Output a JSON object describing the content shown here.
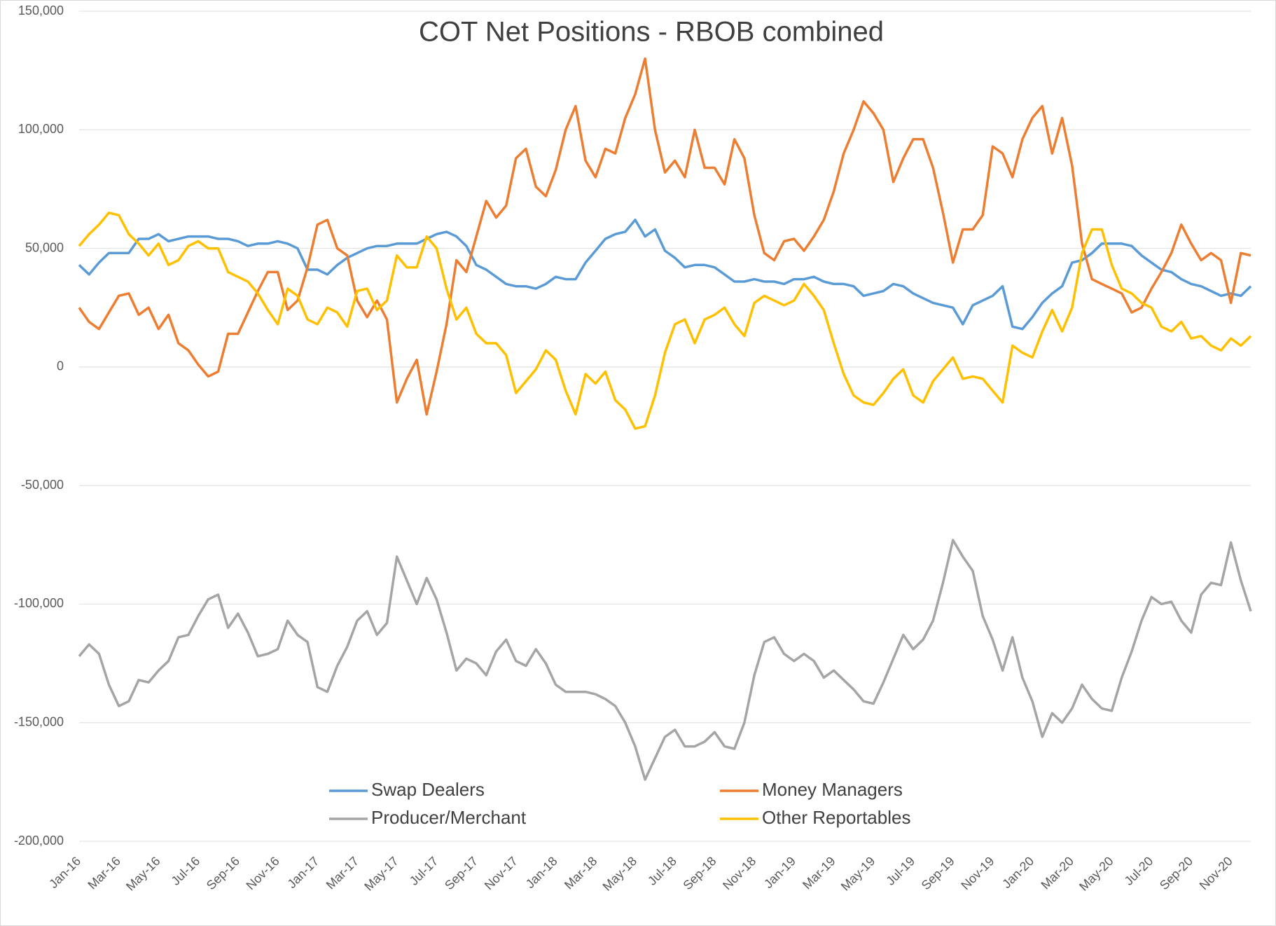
{
  "chart_data": {
    "type": "line",
    "title": "COT Net Positions - RBOB combined",
    "categories": [
      "Jan-16",
      null,
      null,
      null,
      "Mar-16",
      null,
      null,
      null,
      "May-16",
      null,
      null,
      null,
      "Jul-16",
      null,
      null,
      null,
      "Sep-16",
      null,
      null,
      null,
      "Nov-16",
      null,
      null,
      null,
      "Jan-17",
      null,
      null,
      null,
      "Mar-17",
      null,
      null,
      null,
      "May-17",
      null,
      null,
      null,
      "Jul-17",
      null,
      null,
      null,
      "Sep-17",
      null,
      null,
      null,
      "Nov-17",
      null,
      null,
      null,
      "Jan-18",
      null,
      null,
      null,
      "Mar-18",
      null,
      null,
      null,
      "May-18",
      null,
      null,
      null,
      "Jul-18",
      null,
      null,
      null,
      "Sep-18",
      null,
      null,
      null,
      "Nov-18",
      null,
      null,
      null,
      "Jan-19",
      null,
      null,
      null,
      "Mar-19",
      null,
      null,
      null,
      "May-19",
      null,
      null,
      null,
      "Jul-19",
      null,
      null,
      null,
      "Sep-19",
      null,
      null,
      null,
      "Nov-19",
      null,
      null,
      null,
      "Jan-20",
      null,
      null,
      null,
      "Mar-20",
      null,
      null,
      null,
      "May-20",
      null,
      null,
      null,
      "Jul-20",
      null,
      null,
      null,
      "Sep-20",
      null,
      null,
      null,
      "Nov-20",
      null,
      null
    ],
    "series": [
      {
        "name": "Swap Dealers",
        "color": "#5b9bd5",
        "values": [
          43000,
          39000,
          44000,
          48000,
          48000,
          48000,
          54000,
          54000,
          56000,
          53000,
          54000,
          55000,
          55000,
          55000,
          54000,
          54000,
          53000,
          51000,
          52000,
          52000,
          53000,
          52000,
          50000,
          41000,
          41000,
          39000,
          43000,
          46000,
          48000,
          50000,
          51000,
          51000,
          52000,
          52000,
          52000,
          54000,
          56000,
          57000,
          55000,
          51000,
          43000,
          41000,
          38000,
          35000,
          34000,
          34000,
          33000,
          35000,
          38000,
          37000,
          37000,
          44000,
          49000,
          54000,
          56000,
          57000,
          62000,
          55000,
          58000,
          49000,
          46000,
          42000,
          43000,
          43000,
          42000,
          39000,
          36000,
          36000,
          37000,
          36000,
          36000,
          35000,
          37000,
          37000,
          38000,
          36000,
          35000,
          35000,
          34000,
          30000,
          31000,
          32000,
          35000,
          34000,
          31000,
          29000,
          27000,
          26000,
          25000,
          18000,
          26000,
          28000,
          30000,
          34000,
          17000,
          16000,
          21000,
          27000,
          31000,
          34000,
          44000,
          45000,
          48000,
          52000,
          52000,
          52000,
          51000,
          47000,
          44000,
          41000,
          40000,
          37000,
          35000,
          34000,
          32000,
          30000,
          31000,
          30000,
          34000
        ]
      },
      {
        "name": "Money Managers",
        "color": "#ed7d31",
        "values": [
          25000,
          19000,
          16000,
          23000,
          30000,
          31000,
          22000,
          25000,
          16000,
          22000,
          10000,
          7000,
          1000,
          -4000,
          -2000,
          14000,
          14000,
          23000,
          32000,
          40000,
          40000,
          24000,
          28000,
          42000,
          60000,
          62000,
          50000,
          47000,
          28000,
          21000,
          28000,
          20000,
          -15000,
          -5000,
          3000,
          -20000,
          -2000,
          18000,
          45000,
          40000,
          55000,
          70000,
          63000,
          68000,
          88000,
          92000,
          76000,
          72000,
          83000,
          100000,
          110000,
          87000,
          80000,
          92000,
          90000,
          105000,
          115000,
          130000,
          100000,
          82000,
          87000,
          80000,
          100000,
          84000,
          84000,
          77000,
          96000,
          88000,
          64000,
          48000,
          45000,
          53000,
          54000,
          49000,
          55000,
          62000,
          74000,
          90000,
          100000,
          112000,
          107000,
          100000,
          78000,
          88000,
          96000,
          96000,
          84000,
          65000,
          44000,
          58000,
          58000,
          64000,
          93000,
          90000,
          80000,
          96000,
          105000,
          110000,
          90000,
          105000,
          85000,
          52000,
          37000,
          35000,
          33000,
          31000,
          23000,
          25000,
          33000,
          40000,
          48000,
          60000,
          52000,
          45000,
          48000,
          45000,
          27000,
          48000,
          47000
        ]
      },
      {
        "name": "Producer/Merchant",
        "color": "#a5a5a5",
        "values": [
          -122000,
          -117000,
          -121000,
          -134000,
          -143000,
          -141000,
          -132000,
          -133000,
          -128000,
          -124000,
          -114000,
          -113000,
          -105000,
          -98000,
          -96000,
          -110000,
          -104000,
          -112000,
          -122000,
          -121000,
          -119000,
          -107000,
          -113000,
          -116000,
          -135000,
          -137000,
          -126000,
          -118000,
          -107000,
          -103000,
          -113000,
          -108000,
          -80000,
          -90000,
          -100000,
          -89000,
          -98000,
          -112000,
          -128000,
          -123000,
          -125000,
          -130000,
          -120000,
          -115000,
          -124000,
          -126000,
          -119000,
          -125000,
          -134000,
          -137000,
          -137000,
          -137000,
          -138000,
          -140000,
          -143000,
          -150000,
          -160000,
          -174000,
          -165000,
          -156000,
          -153000,
          -160000,
          -160000,
          -158000,
          -154000,
          -160000,
          -161000,
          -150000,
          -130000,
          -116000,
          -114000,
          -121000,
          -124000,
          -121000,
          -124000,
          -131000,
          -128000,
          -132000,
          -136000,
          -141000,
          -142000,
          -133000,
          -123000,
          -113000,
          -119000,
          -115000,
          -107000,
          -91000,
          -73000,
          -80000,
          -86000,
          -105000,
          -115000,
          -128000,
          -114000,
          -131000,
          -141000,
          -156000,
          -146000,
          -150000,
          -144000,
          -134000,
          -140000,
          -144000,
          -145000,
          -131000,
          -120000,
          -107000,
          -97000,
          -100000,
          -99000,
          -107000,
          -112000,
          -96000,
          -91000,
          -92000,
          -74000,
          -90000,
          -103000
        ]
      },
      {
        "name": "Other Reportables",
        "color": "#ffc000",
        "values": [
          51000,
          56000,
          60000,
          65000,
          64000,
          56000,
          52000,
          47000,
          52000,
          43000,
          45000,
          51000,
          53000,
          50000,
          50000,
          40000,
          38000,
          36000,
          31000,
          24000,
          18000,
          33000,
          30000,
          20000,
          18000,
          25000,
          23000,
          17000,
          32000,
          33000,
          24000,
          28000,
          47000,
          42000,
          42000,
          55000,
          50000,
          33000,
          20000,
          25000,
          14000,
          10000,
          10000,
          5000,
          -11000,
          -6000,
          -1000,
          7000,
          3000,
          -10000,
          -20000,
          -3000,
          -7000,
          -2000,
          -14000,
          -18000,
          -26000,
          -25000,
          -12000,
          6000,
          18000,
          20000,
          10000,
          20000,
          22000,
          25000,
          18000,
          13000,
          27000,
          30000,
          28000,
          26000,
          28000,
          35000,
          30000,
          24000,
          10000,
          -3000,
          -12000,
          -15000,
          -16000,
          -11000,
          -5000,
          -1000,
          -12000,
          -15000,
          -6000,
          -1000,
          4000,
          -5000,
          -4000,
          -5000,
          -10000,
          -15000,
          9000,
          6000,
          4000,
          15000,
          24000,
          15000,
          25000,
          48000,
          58000,
          58000,
          43000,
          33000,
          31000,
          27000,
          25000,
          17000,
          15000,
          19000,
          12000,
          13000,
          9000,
          7000,
          12000,
          9000,
          13000
        ]
      }
    ],
    "ylim": [
      -200000,
      150000
    ],
    "yticks": [
      {
        "value": -200000,
        "label": "-200,000"
      },
      {
        "value": -150000,
        "label": "-150,000"
      },
      {
        "value": -100000,
        "label": "-100,000"
      },
      {
        "value": -50000,
        "label": "-50,000"
      },
      0,
      {
        "value": 50000,
        "label": "50,000"
      },
      {
        "value": 100000,
        "label": "100,000"
      },
      {
        "value": 150000,
        "label": "150,000"
      }
    ],
    "grid": true
  }
}
